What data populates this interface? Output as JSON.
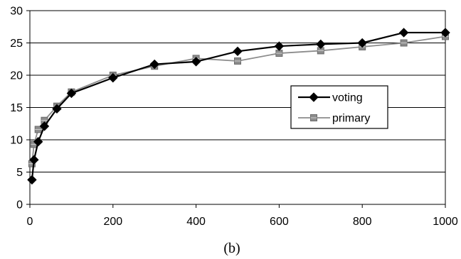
{
  "chart_data": {
    "type": "line",
    "caption": "(b)",
    "xlim": [
      0,
      1000
    ],
    "ylim": [
      0,
      30
    ],
    "x_ticks": [
      0,
      200,
      400,
      600,
      800,
      1000
    ],
    "y_ticks": [
      0,
      5,
      10,
      15,
      20,
      25,
      30
    ],
    "grid": true,
    "legend_position": "right",
    "series": [
      {
        "name": "voting",
        "color": "#000000",
        "marker": "diamond",
        "x": [
          5,
          10,
          20,
          35,
          65,
          100,
          200,
          300,
          400,
          500,
          600,
          700,
          800,
          900,
          1000
        ],
        "y": [
          3.8,
          6.9,
          9.7,
          12.1,
          14.8,
          17.2,
          19.6,
          21.7,
          22.1,
          23.7,
          24.5,
          24.8,
          25.0,
          26.6,
          26.6
        ]
      },
      {
        "name": "primary",
        "color": "#8c8c8c",
        "marker": "square",
        "x": [
          5,
          10,
          20,
          35,
          65,
          100,
          200,
          300,
          400,
          500,
          600,
          700,
          800,
          900,
          1000
        ],
        "y": [
          6.3,
          9.3,
          11.6,
          13.0,
          15.2,
          17.4,
          20.0,
          21.4,
          22.6,
          22.2,
          23.4,
          23.8,
          24.4,
          25.0,
          26.0
        ]
      }
    ]
  }
}
